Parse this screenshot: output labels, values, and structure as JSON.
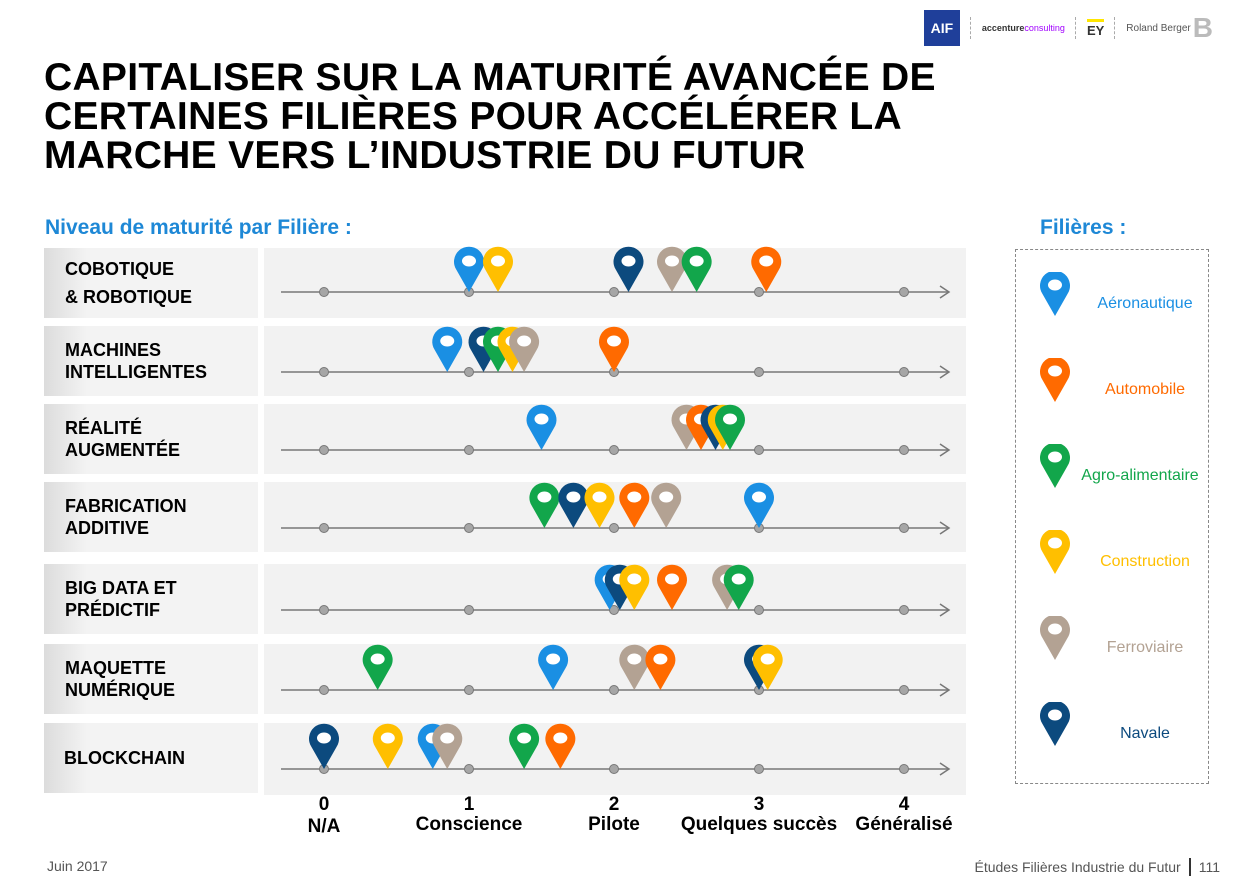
{
  "header": {
    "logos": {
      "aif": "AIF",
      "accenture_a": "accenture",
      "accenture_b": "consulting",
      "ey": "EY",
      "rb_small": "Roland Berger",
      "rb_big": "B"
    },
    "title_lines": [
      "CAPITALISER SUR LA MATURITÉ AVANCÉE DE",
      "CERTAINES FILIÈRES POUR ACCÉLÉRER LA",
      "MARCHE VERS L’INDUSTRIE DU FUTUR"
    ],
    "subtitle": "Niveau de maturité par Filière :"
  },
  "legend": {
    "title": "Filières :",
    "items": [
      {
        "name": "Aéronautique",
        "color": "#1a8fe3"
      },
      {
        "name": "Automobile",
        "color": "#ff6a00"
      },
      {
        "name": "Agro-alimentaire",
        "color": "#12a64b"
      },
      {
        "name": "Construction",
        "color": "#ffbf00"
      },
      {
        "name": "Ferroviaire",
        "color": "#b3a293"
      },
      {
        "name": "Navale",
        "color": "#0c4a7e"
      }
    ]
  },
  "chart_data": {
    "type": "scatter",
    "title": "Niveau de maturité par Filière :",
    "xlabel": "",
    "ylabel": "",
    "xlim": [
      0,
      4
    ],
    "grid": false,
    "legend_position": "right",
    "x_ticks": [
      {
        "value": 0,
        "label": "0",
        "sublabel": "N/A"
      },
      {
        "value": 1,
        "label": "1",
        "sublabel": "Conscience"
      },
      {
        "value": 2,
        "label": "2",
        "sublabel": "Pilote"
      },
      {
        "value": 3,
        "label": "3",
        "sublabel": "Quelques succès"
      },
      {
        "value": 4,
        "label": "4",
        "sublabel": "Généralisé"
      }
    ],
    "categories": [
      "COBOTIQUE\n& ROBOTIQUE",
      "MACHINES\nINTELLIGENTES",
      "RÉALITÉ\nAUGMENTÉE",
      "FABRICATION\nADDITIVE",
      "BIG DATA ET\nPRÉDICTIF",
      "MAQUETTE\nNUMÉRIQUE",
      "BLOCKCHAIN"
    ],
    "series": [
      {
        "name": "Aéronautique",
        "color": "#1a8fe3",
        "values": [
          1.0,
          0.85,
          1.5,
          3.0,
          1.97,
          1.58,
          0.75
        ]
      },
      {
        "name": "Automobile",
        "color": "#ff6a00",
        "values": [
          3.05,
          2.0,
          2.6,
          2.14,
          2.4,
          2.32,
          1.63
        ]
      },
      {
        "name": "Agro-alimentaire",
        "color": "#12a64b",
        "values": [
          2.57,
          1.2,
          2.8,
          1.52,
          2.86,
          0.37,
          1.38
        ]
      },
      {
        "name": "Construction",
        "color": "#ffbf00",
        "values": [
          1.2,
          1.3,
          2.75,
          1.9,
          2.14,
          3.06,
          0.44
        ]
      },
      {
        "name": "Ferroviaire",
        "color": "#b3a293",
        "values": [
          2.4,
          1.38,
          2.5,
          2.36,
          2.78,
          2.14,
          0.85
        ]
      },
      {
        "name": "Navale",
        "color": "#0c4a7e",
        "values": [
          2.1,
          1.1,
          2.7,
          1.72,
          2.04,
          3.0,
          0.0
        ]
      }
    ]
  },
  "footer": {
    "date": "Juin 2017",
    "source": "Études Filières Industrie du Futur",
    "page": "111"
  }
}
